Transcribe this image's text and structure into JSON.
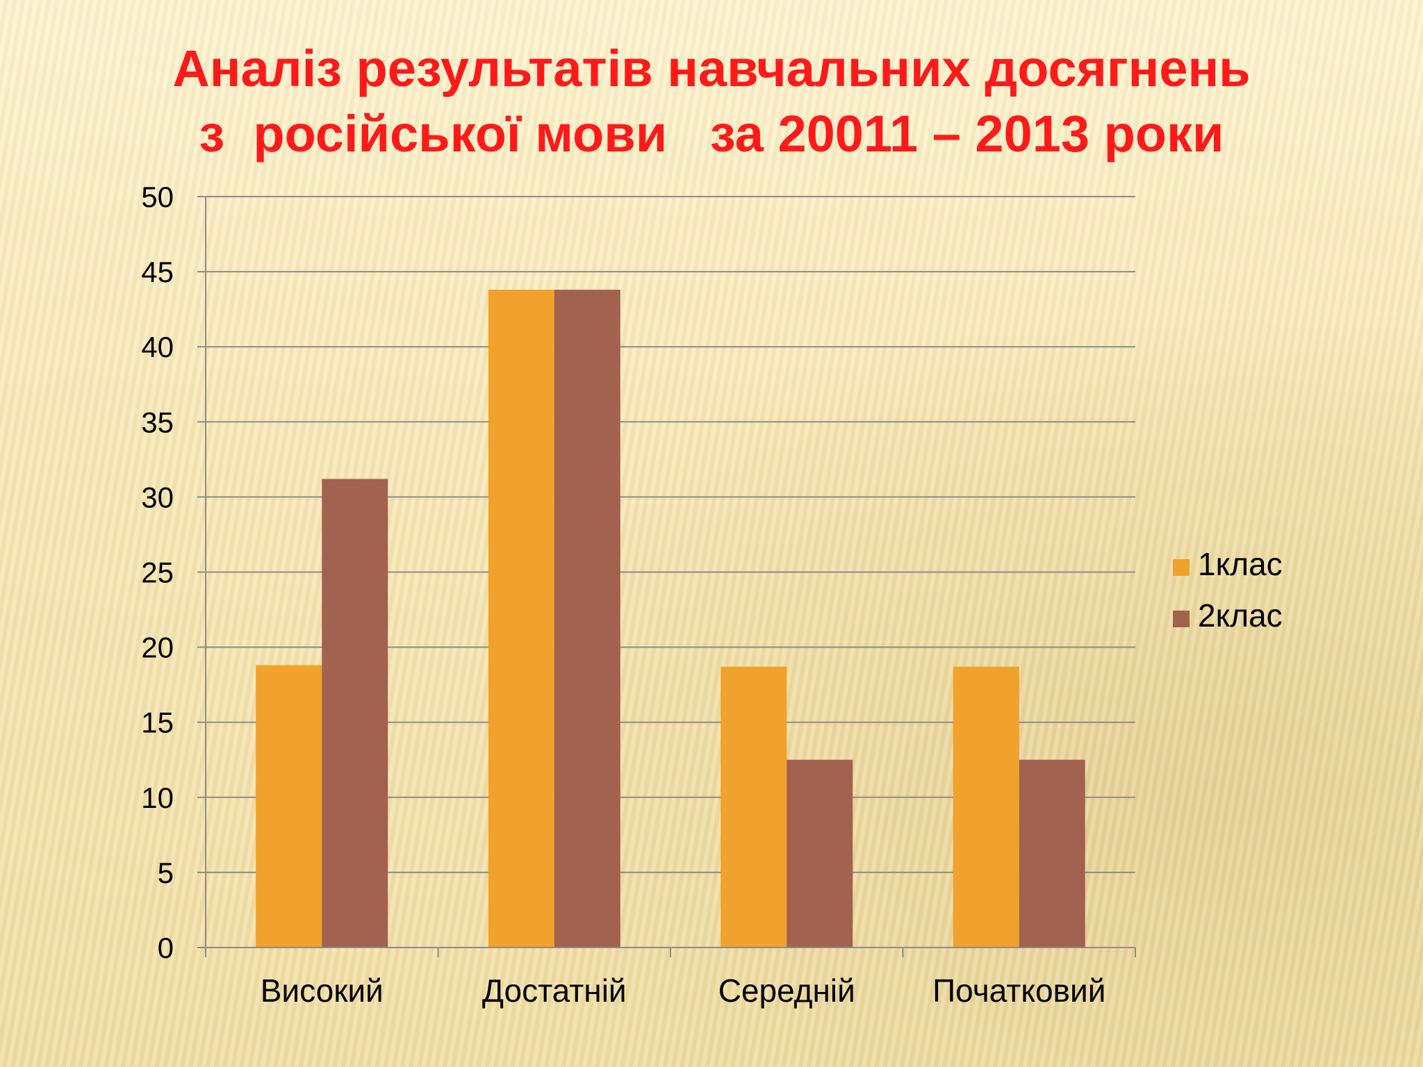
{
  "title": {
    "line1": "Аналіз результатів навчальних досягнень",
    "line2": "з  російської мови   за 20011 – 2013 роки"
  },
  "chart_data": {
    "type": "bar",
    "categories": [
      "Високий",
      "Достатній",
      "Середній",
      "Початковий"
    ],
    "series": [
      {
        "name": "1клас",
        "values": [
          18.8,
          43.8,
          18.7,
          18.7
        ],
        "color": "#f0a22c"
      },
      {
        "name": "2клас",
        "values": [
          31.2,
          43.8,
          12.5,
          12.5
        ],
        "color": "#a3614f"
      }
    ],
    "ylim": [
      0,
      50
    ],
    "yticks": [
      0,
      5,
      10,
      15,
      20,
      25,
      30,
      35,
      40,
      45,
      50
    ],
    "grid": true,
    "legend": "right"
  }
}
